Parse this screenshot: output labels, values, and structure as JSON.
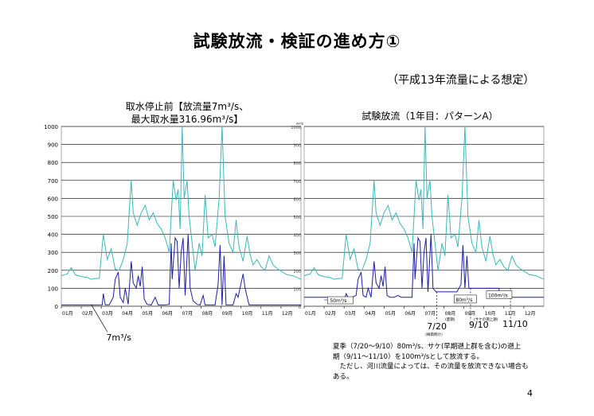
{
  "page": {
    "title": "試験放流・検証の進め方①",
    "subtitle": "（平成13年流量による想定）",
    "page_number": "4",
    "notes": [
      "夏季（7/20～9/10）80m³/s、サケ(早期遡上群を含む)の遡上",
      "期（9/11～11/10）を100m³/sとして放流する。",
      "　ただし、河川流量によっては、その流量を放流できない場合も",
      "ある。"
    ]
  },
  "colors": {
    "inflow": "#3cb8b8",
    "discharge": "#1f1fa8",
    "grid": "#000000",
    "bg": "#ffffff"
  },
  "chart_data": [
    {
      "type": "line",
      "title_lines": [
        "取水停止前【放流量7m³/s、",
        "最大取水量316.96m³/s】"
      ],
      "x_ticks": [
        "01月",
        "02月",
        "03月",
        "04月",
        "05月",
        "06月",
        "07月",
        "08月",
        "09月",
        "10月",
        "11月",
        "12月"
      ],
      "ylim": [
        0,
        1000
      ],
      "y_ticks": [
        "0",
        "100",
        "200",
        "300",
        "400",
        "500",
        "600",
        "700",
        "800",
        "900",
        "1000"
      ],
      "ylabel_unit": "",
      "annotations": {
        "baseflow_label": "7m³/s"
      },
      "series": [
        {
          "name": "",
          "color": "#3cb8b8",
          "points": [
            [
              0,
              170
            ],
            [
              0.3,
              180
            ],
            [
              0.5,
              215
            ],
            [
              0.7,
              175
            ],
            [
              1,
              165
            ],
            [
              1.3,
              160
            ],
            [
              1.5,
              150
            ],
            [
              1.7,
              155
            ],
            [
              1.9,
              155
            ],
            [
              2.1,
              400
            ],
            [
              2.3,
              260
            ],
            [
              2.5,
              320
            ],
            [
              2.7,
              205
            ],
            [
              2.9,
              200
            ],
            [
              3.1,
              260
            ],
            [
              3.3,
              350
            ],
            [
              3.5,
              700
            ],
            [
              3.6,
              520
            ],
            [
              3.8,
              450
            ],
            [
              4,
              520
            ],
            [
              4.2,
              560
            ],
            [
              4.4,
              480
            ],
            [
              4.6,
              520
            ],
            [
              4.8,
              460
            ],
            [
              5,
              430
            ],
            [
              5.2,
              380
            ],
            [
              5.4,
              300
            ],
            [
              5.6,
              700
            ],
            [
              5.75,
              590
            ],
            [
              5.85,
              650
            ],
            [
              5.95,
              430
            ],
            [
              6.05,
              1000
            ],
            [
              6.15,
              600
            ],
            [
              6.3,
              700
            ],
            [
              6.4,
              500
            ],
            [
              6.55,
              350
            ],
            [
              6.7,
              200
            ],
            [
              6.9,
              350
            ],
            [
              7.05,
              280
            ],
            [
              7.2,
              620
            ],
            [
              7.35,
              380
            ],
            [
              7.55,
              400
            ],
            [
              7.7,
              330
            ],
            [
              7.9,
              600
            ],
            [
              8.05,
              1000
            ],
            [
              8.2,
              500
            ],
            [
              8.4,
              350
            ],
            [
              8.6,
              300
            ],
            [
              8.75,
              480
            ],
            [
              8.9,
              330
            ],
            [
              9.1,
              250
            ],
            [
              9.3,
              390
            ],
            [
              9.45,
              290
            ],
            [
              9.6,
              230
            ],
            [
              9.8,
              260
            ],
            [
              10,
              220
            ],
            [
              10.2,
              200
            ],
            [
              10.4,
              280
            ],
            [
              10.6,
              230
            ],
            [
              10.8,
              210
            ],
            [
              11,
              195
            ],
            [
              11.3,
              175
            ],
            [
              11.6,
              170
            ],
            [
              12,
              150
            ]
          ]
        },
        {
          "name": "",
          "color": "#1f1fa8",
          "points": [
            [
              0,
              7
            ],
            [
              1.5,
              7
            ],
            [
              2.05,
              8
            ],
            [
              2.1,
              70
            ],
            [
              2.2,
              8
            ],
            [
              2.4,
              8
            ],
            [
              2.6,
              50
            ],
            [
              2.7,
              150
            ],
            [
              2.85,
              190
            ],
            [
              2.95,
              50
            ],
            [
              3.1,
              20
            ],
            [
              3.2,
              100
            ],
            [
              3.35,
              10
            ],
            [
              3.5,
              250
            ],
            [
              3.6,
              130
            ],
            [
              3.75,
              100
            ],
            [
              3.85,
              170
            ],
            [
              3.95,
              110
            ],
            [
              4.05,
              220
            ],
            [
              4.15,
              40
            ],
            [
              4.3,
              10
            ],
            [
              4.5,
              7
            ],
            [
              4.7,
              50
            ],
            [
              4.85,
              7
            ],
            [
              5.2,
              7
            ],
            [
              5.4,
              10
            ],
            [
              5.5,
              350
            ],
            [
              5.55,
              150
            ],
            [
              5.7,
              380
            ],
            [
              5.8,
              360
            ],
            [
              5.9,
              100
            ],
            [
              6,
              300
            ],
            [
              6.1,
              380
            ],
            [
              6.2,
              60
            ],
            [
              6.35,
              400
            ],
            [
              6.45,
              100
            ],
            [
              6.6,
              30
            ],
            [
              6.8,
              10
            ],
            [
              6.95,
              7
            ],
            [
              7.1,
              60
            ],
            [
              7.2,
              7
            ],
            [
              7.5,
              7
            ],
            [
              7.7,
              7
            ],
            [
              7.85,
              120
            ],
            [
              7.95,
              340
            ],
            [
              8.05,
              7
            ],
            [
              8.15,
              280
            ],
            [
              8.25,
              7
            ],
            [
              8.6,
              7
            ],
            [
              8.75,
              70
            ],
            [
              8.85,
              50
            ],
            [
              9.1,
              180
            ],
            [
              9.2,
              100
            ],
            [
              9.4,
              7
            ],
            [
              10,
              7
            ],
            [
              11,
              7
            ],
            [
              12,
              7
            ]
          ]
        }
      ]
    },
    {
      "type": "line",
      "title_lines": [
        "試験放流（1年目：パターンA）"
      ],
      "x_ticks": [
        "01月",
        "02月",
        "03月",
        "04月",
        "05月",
        "06月",
        "07月",
        "08月",
        "09月",
        "10月",
        "11月",
        "12月"
      ],
      "ylim": [
        0,
        1000
      ],
      "y_ticks": [
        "0",
        "100",
        "200",
        "300",
        "400",
        "500",
        "600",
        "700",
        "800",
        "900",
        "1000"
      ],
      "ylabel_unit": "m³/s",
      "annotations": {
        "label_50": "50m³/s",
        "label_80": "80m³/s",
        "label_100": "100m³/s",
        "date_720": "7/20",
        "date_720_sub": "(梅雨明け)",
        "date_summer_sub": "(夏期)",
        "date_910": "9/10",
        "date_salmon_sub": "(サケの遡上期)",
        "date_1110": "11/10"
      },
      "series": [
        {
          "name": "",
          "color": "#3cb8b8",
          "points": [
            [
              0,
              170
            ],
            [
              0.3,
              180
            ],
            [
              0.5,
              215
            ],
            [
              0.7,
              175
            ],
            [
              1,
              165
            ],
            [
              1.3,
              160
            ],
            [
              1.5,
              150
            ],
            [
              1.7,
              155
            ],
            [
              1.9,
              155
            ],
            [
              2.1,
              400
            ],
            [
              2.3,
              260
            ],
            [
              2.5,
              320
            ],
            [
              2.7,
              205
            ],
            [
              2.9,
              200
            ],
            [
              3.1,
              260
            ],
            [
              3.3,
              350
            ],
            [
              3.5,
              700
            ],
            [
              3.6,
              520
            ],
            [
              3.8,
              450
            ],
            [
              4,
              520
            ],
            [
              4.2,
              560
            ],
            [
              4.4,
              480
            ],
            [
              4.6,
              520
            ],
            [
              4.8,
              460
            ],
            [
              5,
              430
            ],
            [
              5.2,
              380
            ],
            [
              5.4,
              300
            ],
            [
              5.6,
              700
            ],
            [
              5.75,
              590
            ],
            [
              5.85,
              650
            ],
            [
              5.95,
              430
            ],
            [
              6.05,
              1000
            ],
            [
              6.15,
              600
            ],
            [
              6.3,
              700
            ],
            [
              6.4,
              500
            ],
            [
              6.55,
              350
            ],
            [
              6.7,
              200
            ],
            [
              6.9,
              350
            ],
            [
              7.05,
              280
            ],
            [
              7.2,
              620
            ],
            [
              7.35,
              380
            ],
            [
              7.55,
              400
            ],
            [
              7.7,
              330
            ],
            [
              7.9,
              600
            ],
            [
              8.05,
              1000
            ],
            [
              8.2,
              500
            ],
            [
              8.4,
              350
            ],
            [
              8.6,
              300
            ],
            [
              8.75,
              480
            ],
            [
              8.9,
              330
            ],
            [
              9.1,
              250
            ],
            [
              9.3,
              390
            ],
            [
              9.45,
              290
            ],
            [
              9.6,
              230
            ],
            [
              9.8,
              260
            ],
            [
              10,
              220
            ],
            [
              10.2,
              200
            ],
            [
              10.4,
              280
            ],
            [
              10.6,
              230
            ],
            [
              10.8,
              210
            ],
            [
              11,
              195
            ],
            [
              11.3,
              175
            ],
            [
              11.6,
              170
            ],
            [
              12,
              150
            ]
          ]
        },
        {
          "name": "",
          "color": "#1f1fa8",
          "points": [
            [
              0,
              50
            ],
            [
              2.05,
              50
            ],
            [
              2.1,
              70
            ],
            [
              2.2,
              50
            ],
            [
              2.4,
              50
            ],
            [
              2.6,
              60
            ],
            [
              2.7,
              150
            ],
            [
              2.85,
              190
            ],
            [
              2.95,
              60
            ],
            [
              3.1,
              50
            ],
            [
              3.2,
              100
            ],
            [
              3.35,
              50
            ],
            [
              3.5,
              250
            ],
            [
              3.6,
              130
            ],
            [
              3.75,
              100
            ],
            [
              3.85,
              170
            ],
            [
              3.95,
              110
            ],
            [
              4.05,
              220
            ],
            [
              4.15,
              60
            ],
            [
              4.3,
              50
            ],
            [
              4.5,
              50
            ],
            [
              4.7,
              60
            ],
            [
              4.85,
              50
            ],
            [
              5.2,
              50
            ],
            [
              5.4,
              50
            ],
            [
              5.5,
              350
            ],
            [
              5.55,
              150
            ],
            [
              5.7,
              380
            ],
            [
              5.8,
              360
            ],
            [
              5.9,
              100
            ],
            [
              6,
              300
            ],
            [
              6.1,
              380
            ],
            [
              6.2,
              80
            ],
            [
              6.35,
              400
            ],
            [
              6.45,
              100
            ],
            [
              6.6,
              80
            ],
            [
              7.65,
              80
            ],
            [
              7.85,
              120
            ],
            [
              7.95,
              340
            ],
            [
              8.05,
              100
            ],
            [
              8.15,
              280
            ],
            [
              8.25,
              100
            ],
            [
              9.4,
              100
            ],
            [
              9.75,
              100
            ],
            [
              9.8,
              50
            ],
            [
              12,
              50
            ]
          ]
        }
      ]
    }
  ]
}
